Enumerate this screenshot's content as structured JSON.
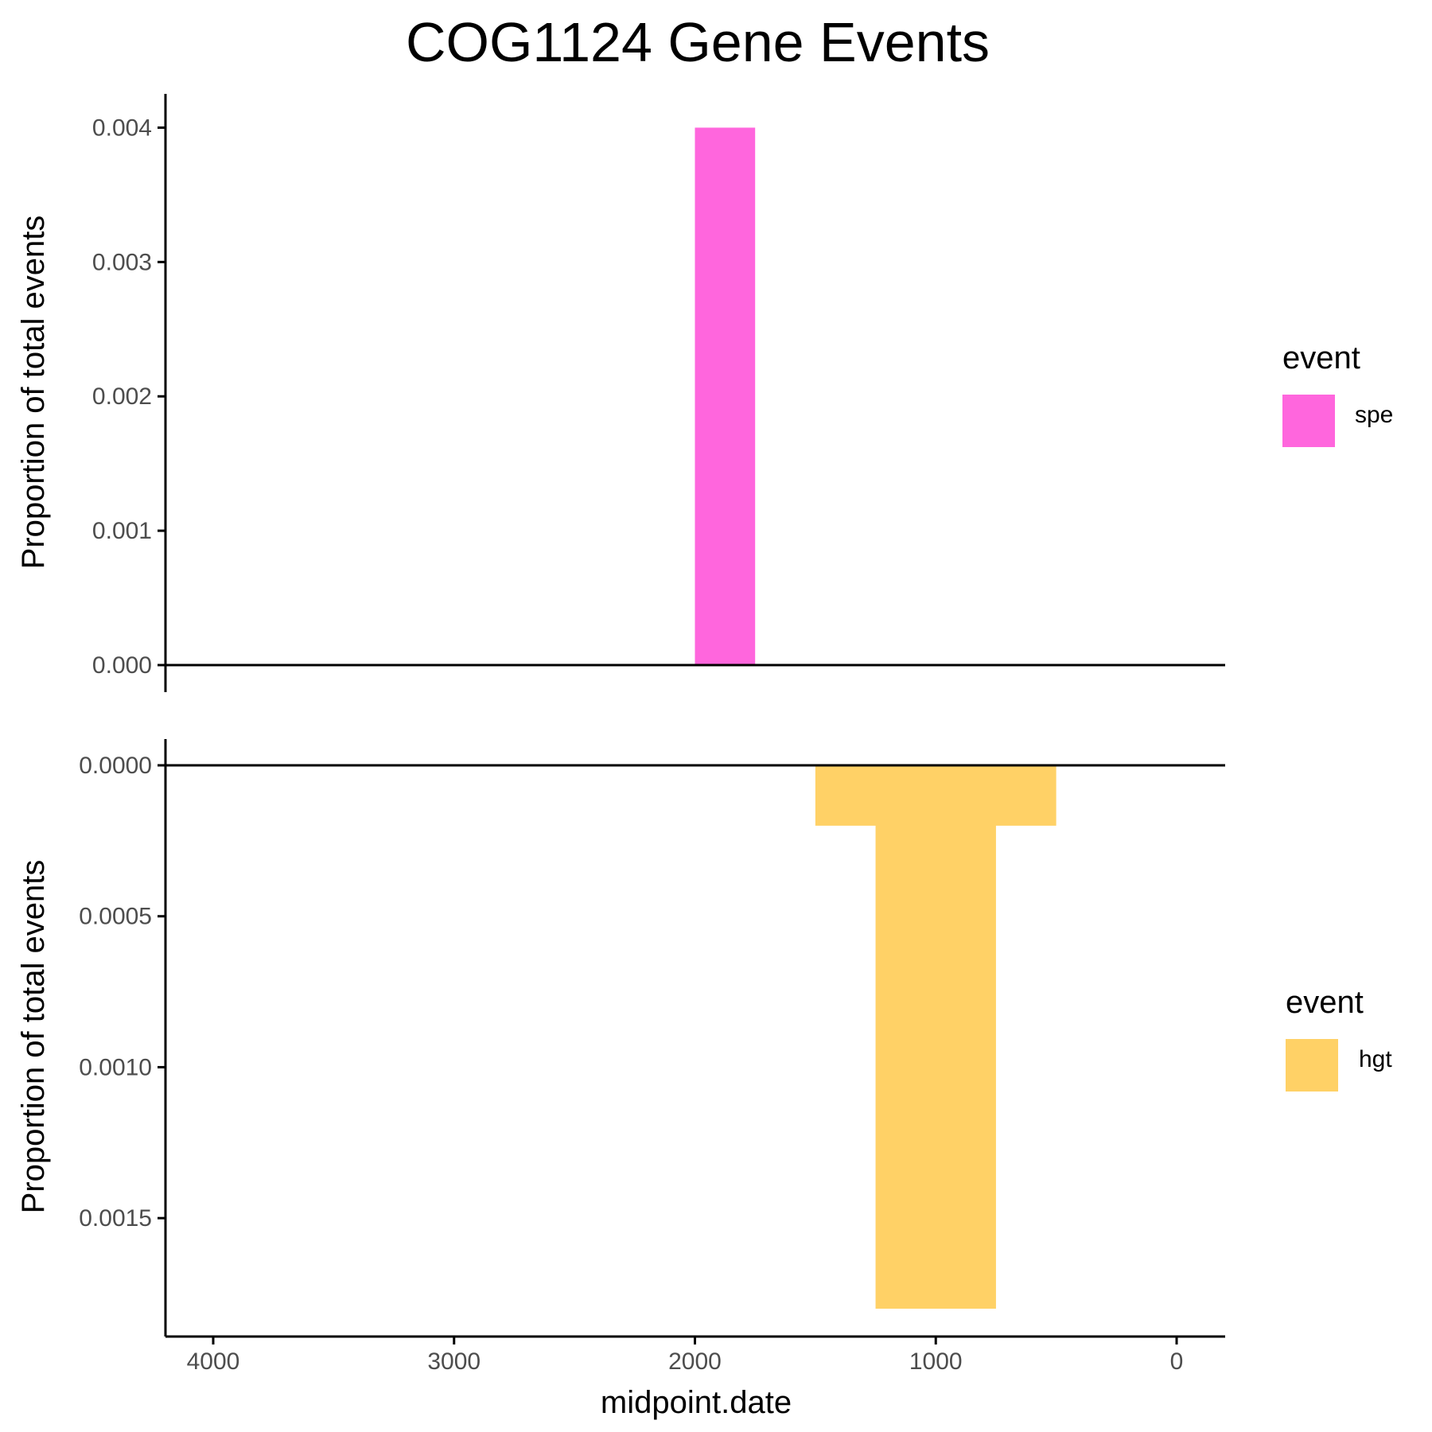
{
  "chart_data": {
    "type": "bar",
    "title": "COG1124 Gene Events",
    "xlabel": "midpoint.date",
    "x_reversed": true,
    "xlim": [
      4200,
      -200
    ],
    "xticks": [
      4000,
      3000,
      2000,
      1000,
      0
    ],
    "xtick_labels": [
      "4000",
      "3000",
      "2000",
      "1000",
      "0"
    ],
    "panels": [
      {
        "ylabel": "Proportion of total events",
        "ylim": [
          0,
          0.00405
        ],
        "y_reversed": false,
        "yticks": [
          0,
          0.001,
          0.002,
          0.003,
          0.004
        ],
        "ytick_labels": [
          "0.000",
          "0.001",
          "0.002",
          "0.003",
          "0.004"
        ],
        "series": [
          {
            "name": "spe",
            "color": "#ff66dd",
            "bars": [
              {
                "x_start": 2000,
                "x_end": 1750,
                "value": 0.004
              }
            ]
          }
        ],
        "legend": {
          "title": "event",
          "entries": [
            {
              "label": "spe",
              "color": "#ff66dd"
            }
          ]
        }
      },
      {
        "ylabel": "Proportion of total events",
        "ylim": [
          0,
          0.0018
        ],
        "y_reversed": true,
        "yticks": [
          0,
          0.0005,
          0.001,
          0.0015
        ],
        "ytick_labels": [
          "0.0000",
          "0.0005",
          "0.0010",
          "0.0015"
        ],
        "series": [
          {
            "name": "hgt",
            "color": "#ffd166",
            "bars": [
              {
                "x_start": 1500,
                "x_end": 500,
                "value": 0.0002
              },
              {
                "x_start": 1250,
                "x_end": 750,
                "value": 0.0018
              }
            ]
          }
        ],
        "legend": {
          "title": "event",
          "entries": [
            {
              "label": "hgt",
              "color": "#ffd166"
            }
          ]
        }
      }
    ]
  }
}
